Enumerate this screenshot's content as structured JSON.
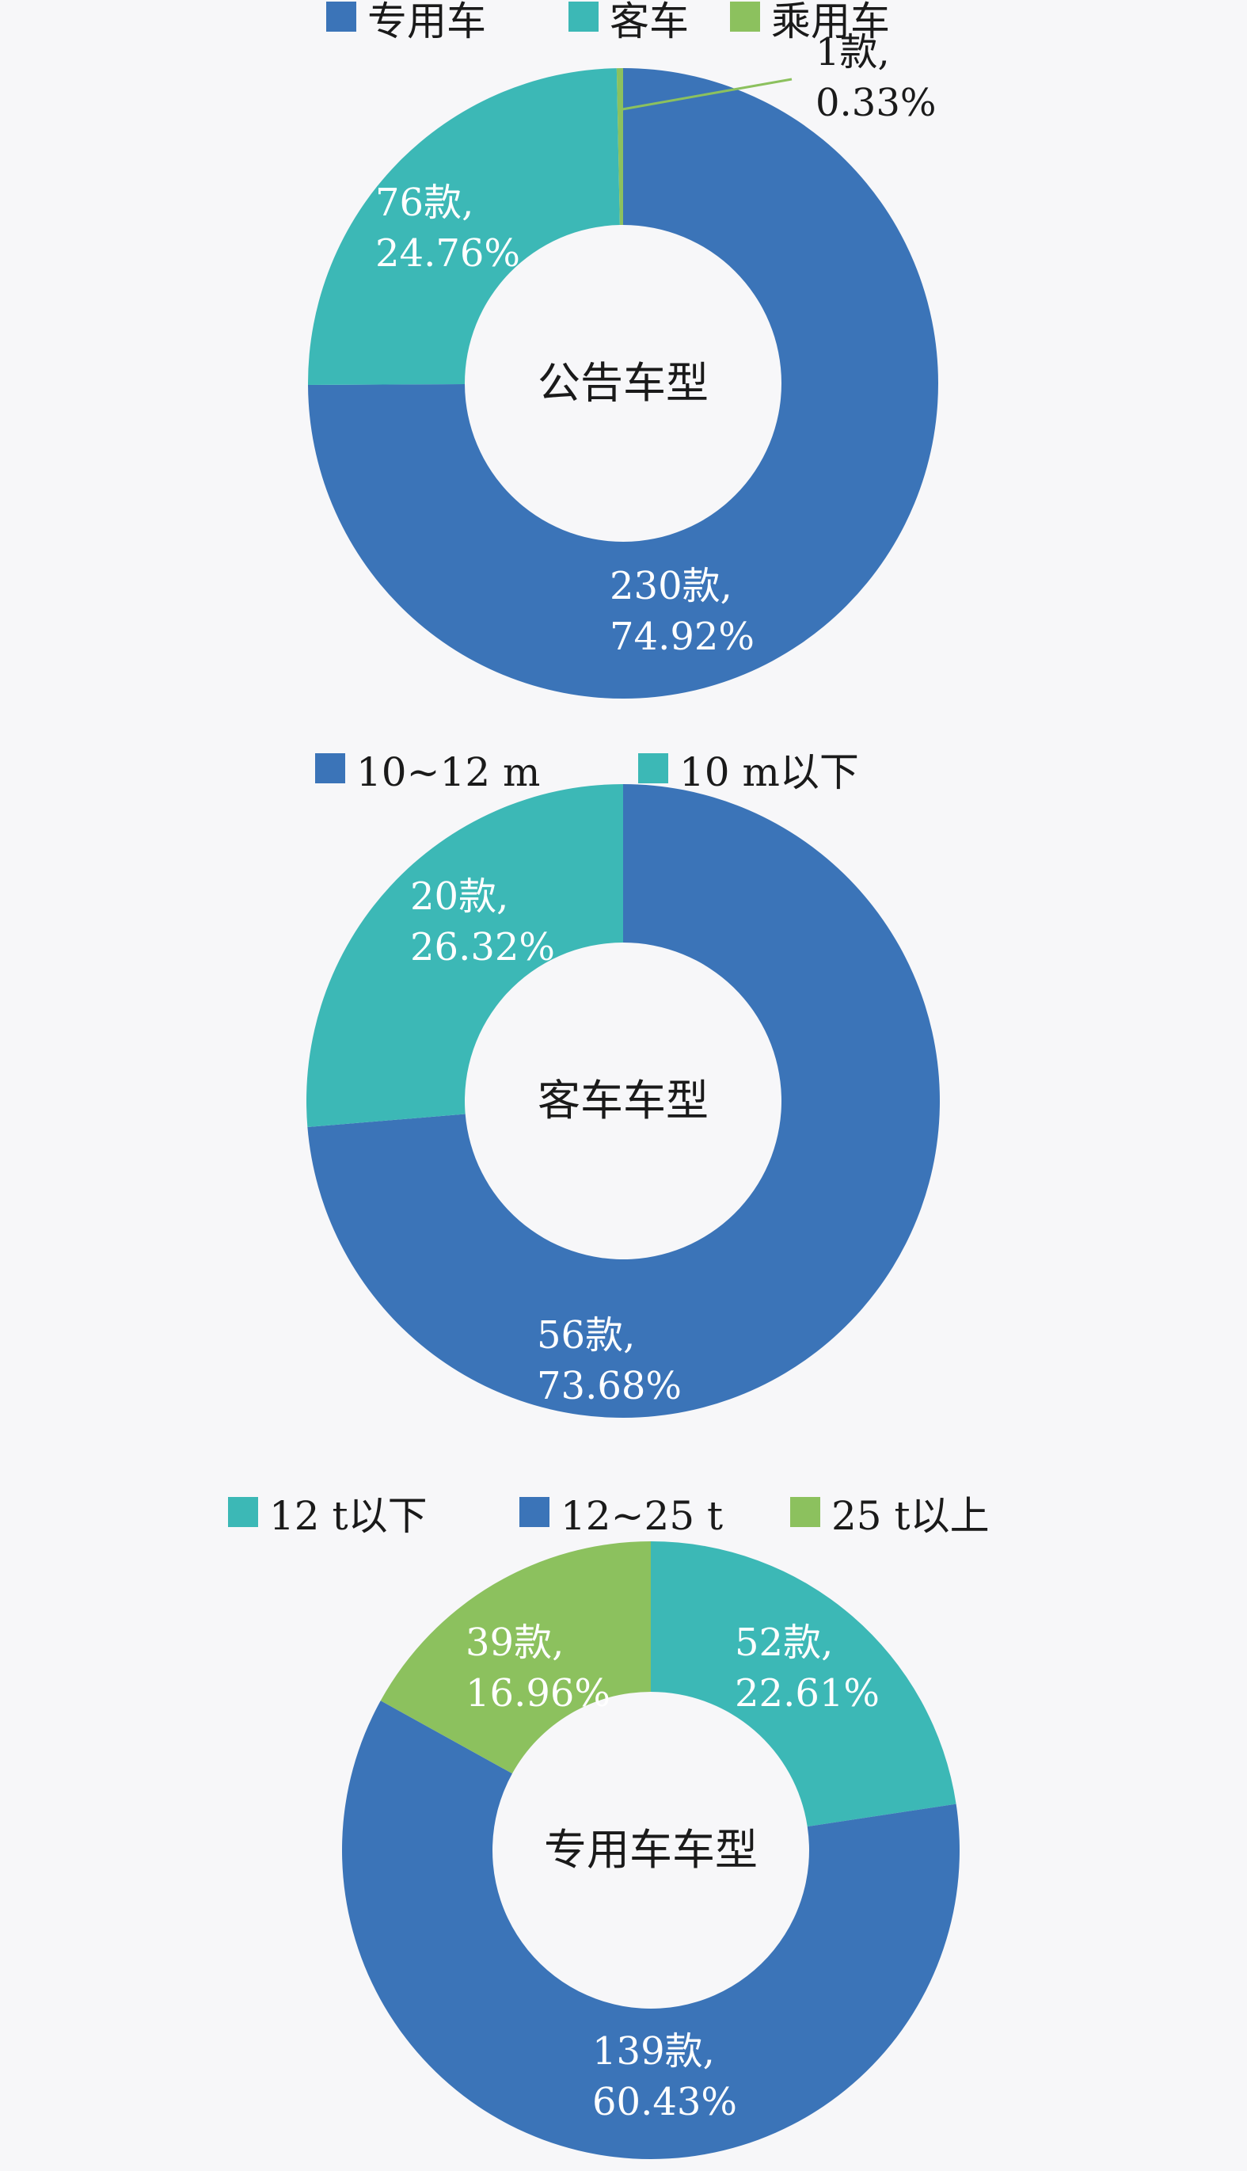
{
  "chart_data": [
    {
      "type": "pie",
      "center_label": "公告车型",
      "series": [
        {
          "name": "专用车",
          "value": 230,
          "percent": 74.92,
          "label_count": "230款,",
          "label_percent": "74.92%",
          "color": "#3b74b8"
        },
        {
          "name": "客车",
          "value": 76,
          "percent": 24.76,
          "label_count": "76款,",
          "label_percent": "24.76%",
          "color": "#3cb8b6"
        },
        {
          "name": "乘用车",
          "value": 1,
          "percent": 0.33,
          "label_count": "1款,",
          "label_percent": "0.33%",
          "color": "#8cc15e"
        }
      ],
      "legend_order": [
        "专用车",
        "客车",
        "乘用车"
      ],
      "legend_position": "top"
    },
    {
      "type": "pie",
      "center_label": "客车车型",
      "series": [
        {
          "name": "10~12 m",
          "value": 56,
          "percent": 73.68,
          "label_count": "56款,",
          "label_percent": "73.68%",
          "color": "#3b74b8"
        },
        {
          "name": "10 m以下",
          "value": 20,
          "percent": 26.32,
          "label_count": "20款,",
          "label_percent": "26.32%",
          "color": "#3cb8b6"
        }
      ],
      "legend_order": [
        "10~12 m",
        "10 m以下"
      ],
      "legend_position": "top"
    },
    {
      "type": "pie",
      "center_label": "专用车车型",
      "series": [
        {
          "name": "12 t以下",
          "value": 52,
          "percent": 22.61,
          "label_count": "52款,",
          "label_percent": "22.61%",
          "color": "#3cb8b6"
        },
        {
          "name": "12~25 t",
          "value": 139,
          "percent": 60.43,
          "label_count": "139款,",
          "label_percent": "60.43%",
          "color": "#3b74b8"
        },
        {
          "name": "25 t以上",
          "value": 39,
          "percent": 16.96,
          "label_count": "39款,",
          "label_percent": "16.96%",
          "color": "#8cc15e"
        }
      ],
      "legend_order": [
        "12 t以下",
        "12~25 t",
        "25 t以上"
      ],
      "legend_position": "top"
    }
  ]
}
